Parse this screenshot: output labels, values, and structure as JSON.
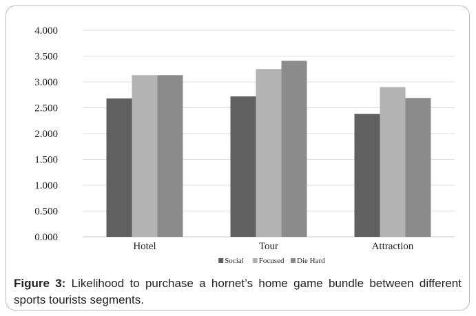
{
  "chart_data": {
    "type": "bar",
    "categories": [
      "Hotel",
      "Tour",
      "Attraction"
    ],
    "series": [
      {
        "name": "Social",
        "color": "#606060",
        "values": [
          2.68,
          2.72,
          2.38
        ]
      },
      {
        "name": "Focused",
        "color": "#b3b3b3",
        "values": [
          3.13,
          3.25,
          2.9
        ]
      },
      {
        "name": "Die Hard",
        "color": "#8b8b8b",
        "values": [
          3.13,
          3.41,
          2.69
        ]
      }
    ],
    "ylim": [
      0,
      4
    ],
    "yticks": [
      "0.000",
      "0.500",
      "1.000",
      "1.500",
      "2.000",
      "2.500",
      "3.000",
      "3.500",
      "4.000"
    ],
    "ytick_values": [
      0,
      0.5,
      1,
      1.5,
      2,
      2.5,
      3,
      3.5,
      4
    ],
    "grid": true,
    "legend_position": "bottom"
  },
  "caption": {
    "label": "Figure 3:",
    "text": " Likelihood to purchase a hornet’s home game bundle between different sports tourists segments."
  }
}
